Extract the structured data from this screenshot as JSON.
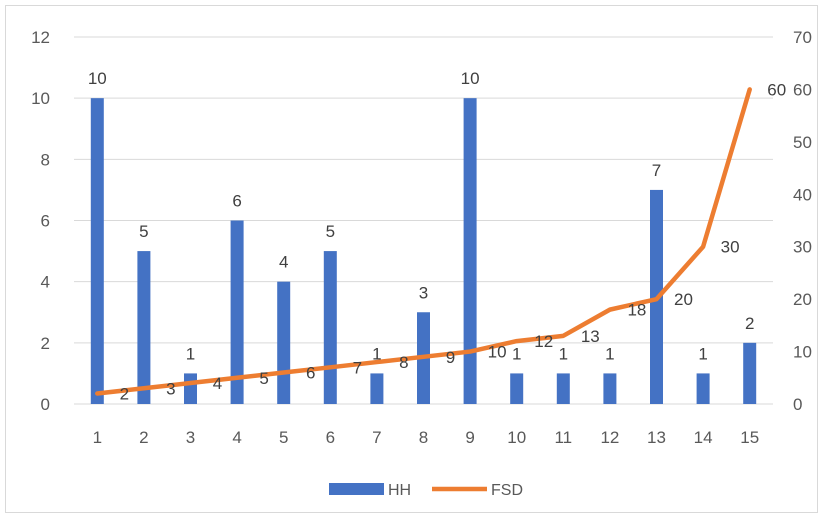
{
  "chart_data": {
    "type": "bar",
    "categories": [
      "1",
      "2",
      "3",
      "4",
      "5",
      "6",
      "7",
      "8",
      "9",
      "10",
      "11",
      "12",
      "13",
      "14",
      "15"
    ],
    "series": [
      {
        "name": "HH",
        "type": "bar",
        "axis": "left",
        "color": "#4472c4",
        "values": [
          10,
          5,
          1,
          6,
          4,
          5,
          1,
          3,
          10,
          1,
          1,
          1,
          7,
          1,
          2
        ],
        "labels": [
          "10",
          "5",
          "1",
          "6",
          "4",
          "5",
          "1",
          "3",
          "10",
          "1",
          "1",
          "1",
          "7",
          "1",
          "2"
        ]
      },
      {
        "name": "FSD",
        "type": "line",
        "axis": "right",
        "color": "#ed7d31",
        "values": [
          2,
          3,
          4,
          5,
          6,
          7,
          8,
          9,
          10,
          12,
          13,
          18,
          20,
          30,
          60
        ],
        "labels": [
          "2",
          "3",
          "4",
          "5",
          "6",
          "7",
          "8",
          "9",
          "10",
          "12",
          "13",
          "18",
          "20",
          "30",
          "60"
        ]
      }
    ],
    "ylim_left": [
      0,
      12
    ],
    "yticks_left": [
      "0",
      "2",
      "4",
      "6",
      "8",
      "10",
      "12"
    ],
    "ylim_right": [
      0,
      70
    ],
    "yticks_right": [
      "0",
      "10",
      "20",
      "30",
      "40",
      "50",
      "60",
      "70"
    ],
    "grid": true,
    "legend_position": "bottom",
    "title": "",
    "xlabel": "",
    "ylabel": ""
  }
}
